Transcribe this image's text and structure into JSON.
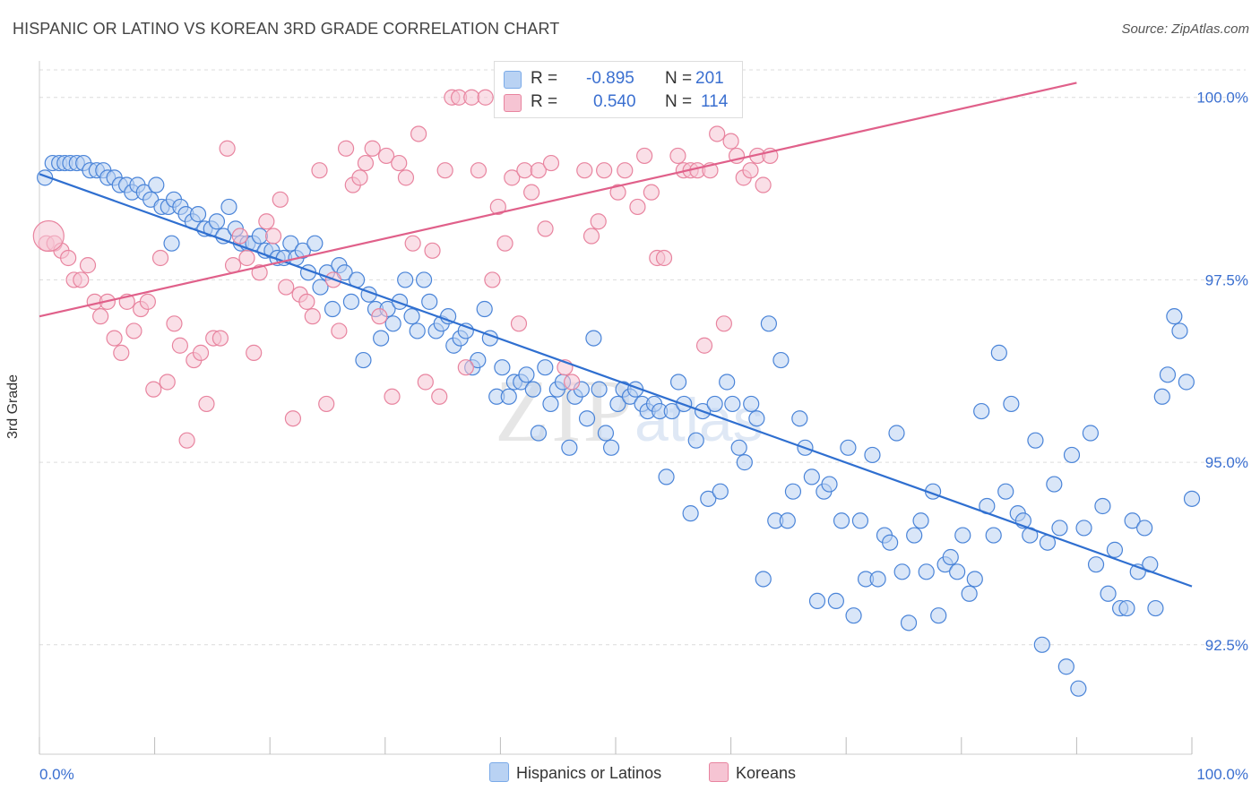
{
  "header": {
    "title": "HISPANIC OR LATINO VS KOREAN 3RD GRADE CORRELATION CHART",
    "source": "Source: ZipAtlas.com"
  },
  "legend": {
    "r_label": "R =",
    "n_label": "N =",
    "rows": [
      {
        "name": "Hispanics or Latinos",
        "r": "-0.895",
        "n": "201",
        "color": "#7aaae8",
        "fill": "#b9d2f3"
      },
      {
        "name": "Koreans",
        "r": "0.540",
        "n": "114",
        "color": "#e8849f",
        "fill": "#f6c4d3"
      }
    ]
  },
  "watermark": {
    "zip": "ZIP",
    "atlas": "atlas"
  },
  "chart_data": {
    "type": "scatter",
    "xlabel": "",
    "ylabel": "3rd Grade",
    "xlim": [
      0,
      100
    ],
    "ylim": [
      91.0,
      100.5
    ],
    "x_tick_labels": [
      "0.0%",
      "100.0%"
    ],
    "y_ticks": [
      92.5,
      95.0,
      97.5,
      100.0
    ],
    "y_tick_labels": [
      "92.5%",
      "95.0%",
      "97.5%",
      "100.0%"
    ],
    "grid": true,
    "series": [
      {
        "name": "Hispanics or Latinos",
        "color": "#4a84d8",
        "fill": "#b9d2f3",
        "trend": {
          "x": [
            0,
            100
          ],
          "y": [
            98.95,
            93.3
          ],
          "color": "#2f6fd0"
        },
        "points": [
          [
            0.5,
            98.9
          ],
          [
            1.2,
            99.1
          ],
          [
            1.8,
            99.1
          ],
          [
            2.3,
            99.1
          ],
          [
            2.8,
            99.1
          ],
          [
            3.4,
            99.1
          ],
          [
            4.0,
            99.1
          ],
          [
            4.6,
            99.0
          ],
          [
            5.2,
            99.0
          ],
          [
            5.8,
            99.0
          ],
          [
            6.2,
            98.9
          ],
          [
            6.8,
            98.9
          ],
          [
            7.3,
            98.8
          ],
          [
            7.9,
            98.8
          ],
          [
            8.4,
            98.7
          ],
          [
            8.9,
            98.8
          ],
          [
            9.5,
            98.7
          ],
          [
            10.1,
            98.6
          ],
          [
            10.6,
            98.8
          ],
          [
            11.1,
            98.5
          ],
          [
            11.7,
            98.5
          ],
          [
            12.2,
            98.6
          ],
          [
            12.8,
            98.5
          ],
          [
            13.3,
            98.4
          ],
          [
            13.9,
            98.3
          ],
          [
            14.4,
            98.4
          ],
          [
            15.0,
            98.2
          ],
          [
            15.6,
            98.2
          ],
          [
            16.1,
            98.3
          ],
          [
            16.7,
            98.1
          ],
          [
            17.2,
            98.5
          ],
          [
            17.8,
            98.2
          ],
          [
            18.3,
            98.0
          ],
          [
            18.9,
            98.0
          ],
          [
            19.4,
            98.0
          ],
          [
            20.0,
            98.1
          ],
          [
            20.5,
            97.9
          ],
          [
            21.1,
            97.9
          ],
          [
            21.6,
            97.8
          ],
          [
            22.2,
            97.8
          ],
          [
            22.8,
            98.0
          ],
          [
            23.3,
            97.8
          ],
          [
            23.9,
            97.9
          ],
          [
            24.4,
            97.6
          ],
          [
            25.0,
            98.0
          ],
          [
            25.5,
            97.4
          ],
          [
            26.1,
            97.6
          ],
          [
            26.6,
            97.1
          ],
          [
            27.2,
            97.7
          ],
          [
            27.7,
            97.6
          ],
          [
            28.3,
            97.2
          ],
          [
            28.8,
            97.5
          ],
          [
            29.4,
            96.4
          ],
          [
            29.9,
            97.3
          ],
          [
            30.5,
            97.1
          ],
          [
            31.0,
            96.7
          ],
          [
            31.6,
            97.1
          ],
          [
            32.1,
            96.9
          ],
          [
            32.7,
            97.2
          ],
          [
            33.2,
            97.5
          ],
          [
            33.8,
            97.0
          ],
          [
            34.3,
            96.8
          ],
          [
            34.9,
            97.5
          ],
          [
            35.4,
            97.2
          ],
          [
            36.0,
            96.8
          ],
          [
            36.5,
            96.9
          ],
          [
            37.1,
            97.0
          ],
          [
            37.6,
            96.6
          ],
          [
            38.2,
            96.7
          ],
          [
            38.7,
            96.8
          ],
          [
            39.3,
            96.3
          ],
          [
            39.8,
            96.4
          ],
          [
            40.4,
            97.1
          ],
          [
            40.9,
            96.7
          ],
          [
            41.5,
            95.9
          ],
          [
            42.0,
            96.3
          ],
          [
            42.6,
            95.9
          ],
          [
            43.1,
            96.1
          ],
          [
            43.7,
            96.1
          ],
          [
            44.2,
            96.2
          ],
          [
            44.8,
            96.0
          ],
          [
            45.3,
            95.4
          ],
          [
            45.9,
            96.3
          ],
          [
            46.4,
            95.8
          ],
          [
            47.0,
            96.0
          ],
          [
            47.5,
            96.1
          ],
          [
            48.1,
            95.2
          ],
          [
            48.6,
            95.9
          ],
          [
            49.2,
            96.0
          ],
          [
            49.7,
            95.6
          ],
          [
            50.3,
            96.7
          ],
          [
            50.8,
            96.0
          ],
          [
            51.4,
            95.4
          ],
          [
            51.9,
            95.2
          ],
          [
            52.5,
            95.8
          ],
          [
            53.0,
            96.0
          ],
          [
            53.6,
            95.9
          ],
          [
            54.1,
            96.0
          ],
          [
            54.7,
            95.8
          ],
          [
            55.2,
            95.7
          ],
          [
            55.8,
            95.8
          ],
          [
            56.3,
            95.7
          ],
          [
            56.9,
            94.8
          ],
          [
            57.4,
            95.7
          ],
          [
            58.0,
            96.1
          ],
          [
            58.5,
            95.8
          ],
          [
            59.1,
            94.3
          ],
          [
            59.6,
            95.3
          ],
          [
            60.2,
            95.7
          ],
          [
            60.7,
            94.5
          ],
          [
            61.3,
            95.8
          ],
          [
            61.8,
            94.6
          ],
          [
            62.4,
            96.1
          ],
          [
            62.9,
            95.8
          ],
          [
            63.5,
            95.2
          ],
          [
            64.0,
            95.0
          ],
          [
            64.6,
            95.8
          ],
          [
            65.1,
            95.6
          ],
          [
            65.7,
            93.4
          ],
          [
            66.2,
            96.9
          ],
          [
            66.8,
            94.2
          ],
          [
            67.3,
            96.4
          ],
          [
            67.9,
            94.2
          ],
          [
            68.4,
            94.6
          ],
          [
            69.0,
            95.6
          ],
          [
            69.5,
            95.2
          ],
          [
            70.1,
            94.8
          ],
          [
            70.6,
            93.1
          ],
          [
            71.2,
            94.6
          ],
          [
            71.7,
            94.7
          ],
          [
            72.3,
            93.1
          ],
          [
            72.8,
            94.2
          ],
          [
            73.4,
            95.2
          ],
          [
            73.9,
            92.9
          ],
          [
            74.5,
            94.2
          ],
          [
            75.0,
            93.4
          ],
          [
            75.6,
            95.1
          ],
          [
            76.1,
            93.4
          ],
          [
            76.7,
            94.0
          ],
          [
            77.2,
            93.9
          ],
          [
            77.8,
            95.4
          ],
          [
            78.3,
            93.5
          ],
          [
            78.9,
            92.8
          ],
          [
            79.4,
            94.0
          ],
          [
            80.0,
            94.2
          ],
          [
            80.5,
            93.5
          ],
          [
            81.1,
            94.6
          ],
          [
            81.6,
            92.9
          ],
          [
            82.2,
            93.6
          ],
          [
            82.7,
            93.7
          ],
          [
            83.3,
            93.5
          ],
          [
            83.8,
            94.0
          ],
          [
            84.4,
            93.2
          ],
          [
            84.9,
            93.4
          ],
          [
            85.5,
            95.7
          ],
          [
            86.0,
            94.4
          ],
          [
            86.6,
            94.0
          ],
          [
            87.1,
            96.5
          ],
          [
            87.7,
            94.6
          ],
          [
            88.2,
            95.8
          ],
          [
            88.8,
            94.3
          ],
          [
            89.3,
            94.2
          ],
          [
            89.9,
            94.0
          ],
          [
            90.4,
            95.3
          ],
          [
            91.0,
            92.5
          ],
          [
            91.5,
            93.9
          ],
          [
            92.1,
            94.7
          ],
          [
            92.6,
            94.1
          ],
          [
            93.2,
            92.2
          ],
          [
            93.7,
            95.1
          ],
          [
            94.3,
            91.9
          ],
          [
            94.8,
            94.1
          ],
          [
            95.4,
            95.4
          ],
          [
            95.9,
            93.6
          ],
          [
            96.5,
            94.4
          ],
          [
            97.0,
            93.2
          ],
          [
            97.6,
            93.8
          ],
          [
            98.1,
            93.0
          ],
          [
            98.7,
            93.0
          ],
          [
            99.2,
            94.2
          ],
          [
            99.7,
            93.5
          ],
          [
            100.3,
            94.1
          ],
          [
            100.8,
            93.6
          ],
          [
            101.3,
            93.0
          ],
          [
            101.9,
            95.9
          ],
          [
            102.4,
            96.2
          ],
          [
            103.0,
            97.0
          ],
          [
            103.5,
            96.8
          ],
          [
            104.1,
            96.1
          ],
          [
            104.6,
            94.5
          ],
          [
            12.0,
            98.0
          ]
        ]
      },
      {
        "name": "Koreans",
        "color": "#e8849f",
        "fill": "#f6c4d3",
        "trend": {
          "x": [
            0,
            90
          ],
          "y": [
            97.0,
            100.2
          ],
          "color": "#e0608a"
        },
        "points": [
          [
            0.6,
            98.0
          ],
          [
            1.3,
            98.0
          ],
          [
            1.9,
            97.9
          ],
          [
            2.5,
            97.8
          ],
          [
            3.0,
            97.5
          ],
          [
            3.6,
            97.5
          ],
          [
            4.2,
            97.7
          ],
          [
            4.8,
            97.2
          ],
          [
            5.3,
            97.0
          ],
          [
            5.9,
            97.2
          ],
          [
            6.5,
            96.7
          ],
          [
            7.1,
            96.5
          ],
          [
            7.6,
            97.2
          ],
          [
            8.2,
            96.8
          ],
          [
            8.8,
            97.1
          ],
          [
            9.4,
            97.2
          ],
          [
            9.9,
            96.0
          ],
          [
            10.5,
            97.8
          ],
          [
            11.1,
            96.1
          ],
          [
            11.7,
            96.9
          ],
          [
            12.2,
            96.6
          ],
          [
            12.8,
            95.3
          ],
          [
            13.4,
            96.4
          ],
          [
            14.0,
            96.5
          ],
          [
            14.5,
            95.8
          ],
          [
            15.1,
            96.7
          ],
          [
            15.7,
            96.7
          ],
          [
            16.3,
            99.3
          ],
          [
            16.8,
            97.7
          ],
          [
            17.4,
            98.1
          ],
          [
            18.0,
            97.8
          ],
          [
            18.6,
            96.5
          ],
          [
            19.1,
            97.6
          ],
          [
            19.7,
            98.3
          ],
          [
            20.3,
            98.1
          ],
          [
            20.9,
            98.6
          ],
          [
            21.4,
            97.4
          ],
          [
            22.0,
            95.6
          ],
          [
            22.6,
            97.3
          ],
          [
            23.2,
            97.2
          ],
          [
            23.7,
            97.0
          ],
          [
            24.3,
            99.0
          ],
          [
            24.9,
            95.8
          ],
          [
            25.5,
            97.5
          ],
          [
            26.0,
            96.8
          ],
          [
            26.6,
            99.3
          ],
          [
            27.2,
            98.8
          ],
          [
            27.8,
            98.9
          ],
          [
            28.3,
            99.1
          ],
          [
            28.9,
            99.3
          ],
          [
            29.5,
            97.0
          ],
          [
            30.1,
            99.2
          ],
          [
            30.6,
            95.9
          ],
          [
            31.2,
            99.1
          ],
          [
            31.8,
            98.9
          ],
          [
            32.4,
            98.0
          ],
          [
            32.9,
            99.5
          ],
          [
            33.5,
            96.1
          ],
          [
            34.1,
            97.9
          ],
          [
            34.7,
            95.9
          ],
          [
            35.2,
            99.0
          ],
          [
            35.8,
            100.0
          ],
          [
            36.4,
            100.0
          ],
          [
            37.0,
            96.3
          ],
          [
            37.5,
            100.0
          ],
          [
            38.1,
            99.0
          ],
          [
            38.7,
            100.0
          ],
          [
            39.3,
            97.5
          ],
          [
            39.8,
            98.5
          ],
          [
            40.4,
            98.0
          ],
          [
            41.0,
            98.9
          ],
          [
            41.6,
            96.9
          ],
          [
            42.1,
            99.0
          ],
          [
            42.7,
            98.7
          ],
          [
            43.3,
            99.0
          ],
          [
            43.9,
            98.2
          ],
          [
            44.4,
            99.1
          ],
          [
            45.0,
            100.0
          ],
          [
            45.6,
            96.3
          ],
          [
            46.2,
            96.1
          ],
          [
            46.7,
            100.0
          ],
          [
            47.3,
            99.0
          ],
          [
            47.9,
            98.1
          ],
          [
            48.5,
            98.3
          ],
          [
            49.0,
            99.0
          ],
          [
            49.6,
            100.0
          ],
          [
            50.2,
            98.7
          ],
          [
            50.8,
            99.0
          ],
          [
            51.3,
            100.0
          ],
          [
            51.9,
            98.5
          ],
          [
            52.5,
            99.2
          ],
          [
            53.1,
            98.7
          ],
          [
            53.6,
            97.8
          ],
          [
            54.2,
            97.8
          ],
          [
            54.8,
            100.0
          ],
          [
            55.4,
            99.2
          ],
          [
            55.9,
            99.0
          ],
          [
            56.5,
            99.0
          ],
          [
            57.1,
            99.0
          ],
          [
            57.7,
            96.6
          ],
          [
            58.2,
            99.0
          ],
          [
            58.8,
            99.5
          ],
          [
            59.4,
            96.9
          ],
          [
            60.0,
            99.4
          ],
          [
            60.5,
            99.2
          ],
          [
            61.1,
            98.9
          ],
          [
            61.7,
            99.0
          ],
          [
            62.3,
            99.2
          ],
          [
            62.8,
            98.8
          ],
          [
            63.4,
            99.2
          ],
          [
            0.8,
            98.1
          ]
        ]
      }
    ]
  }
}
